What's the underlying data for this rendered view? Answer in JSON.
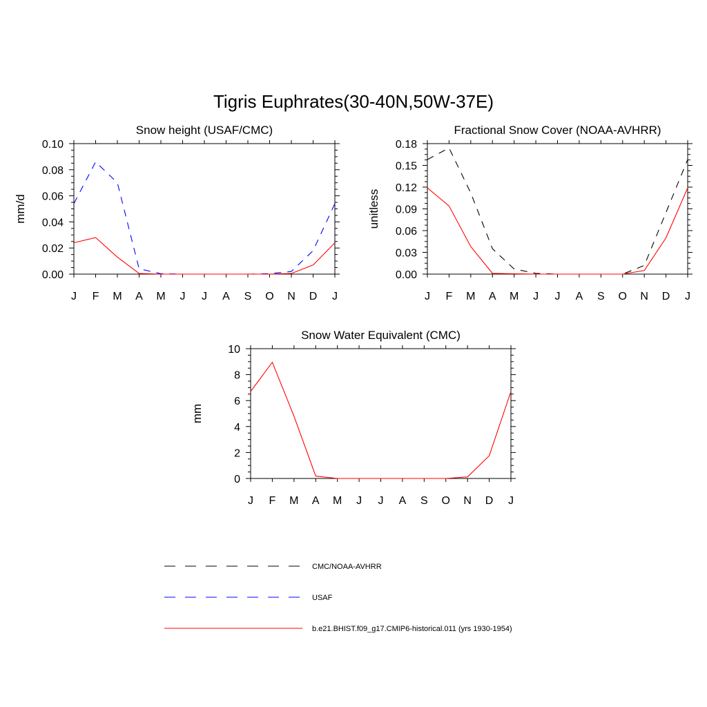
{
  "figure": {
    "title": "Tigris Euphrates(30-40N,50W-37E)"
  },
  "chart_data": [
    {
      "type": "line",
      "title": "Snow height (USAF/CMC)",
      "xlabel": "",
      "ylabel": "mm/d",
      "categories": [
        "J",
        "F",
        "M",
        "A",
        "M",
        "J",
        "J",
        "A",
        "S",
        "O",
        "N",
        "D",
        "J"
      ],
      "ylim": [
        0,
        0.1
      ],
      "yticks": [
        "0.00",
        "0.02",
        "0.04",
        "0.06",
        "0.08",
        "0.10"
      ],
      "series": [
        {
          "name": "CMC/NOAA-AVHRR",
          "color": "#000000",
          "dash": true,
          "values": [
            0,
            0,
            0,
            0,
            0,
            0,
            0,
            0,
            0,
            0,
            0,
            0,
            0
          ]
        },
        {
          "name": "USAF",
          "color": "#0000ff",
          "dash": true,
          "values": [
            0.054,
            0.086,
            0.07,
            0.004,
            0.0003,
            0,
            0,
            0,
            0,
            0.0003,
            0.002,
            0.018,
            0.054
          ]
        },
        {
          "name": "b.e21.BHIST.f09_g17.CMIP6-historical.011 (yrs 1930-1954)",
          "color": "#ff0000",
          "dash": false,
          "values": [
            0.024,
            0.028,
            0.013,
            0.0005,
            0,
            0,
            0,
            0,
            0,
            0,
            0.0005,
            0.007,
            0.024
          ]
        }
      ]
    },
    {
      "type": "line",
      "title": "Fractional Snow Cover (NOAA-AVHRR)",
      "xlabel": "",
      "ylabel": "unitless",
      "categories": [
        "J",
        "F",
        "M",
        "A",
        "M",
        "J",
        "J",
        "A",
        "S",
        "O",
        "N",
        "D",
        "J"
      ],
      "ylim": [
        0,
        0.18
      ],
      "yticks": [
        "0.00",
        "0.03",
        "0.06",
        "0.09",
        "0.12",
        "0.15",
        "0.18"
      ],
      "series": [
        {
          "name": "CMC/NOAA-AVHRR",
          "color": "#000000",
          "dash": true,
          "values": [
            0.158,
            0.174,
            0.112,
            0.035,
            0.007,
            0.001,
            0,
            0,
            0,
            0,
            0.012,
            0.085,
            0.158
          ]
        },
        {
          "name": "b.e21.BHIST.f09_g17.CMIP6-historical.011 (yrs 1930-1954)",
          "color": "#ff0000",
          "dash": false,
          "values": [
            0.119,
            0.094,
            0.038,
            0.001,
            0.0005,
            0,
            0,
            0,
            0,
            0,
            0.005,
            0.05,
            0.119
          ]
        }
      ]
    },
    {
      "type": "line",
      "title": "Snow Water Equivalent (CMC)",
      "xlabel": "",
      "ylabel": "mm",
      "categories": [
        "J",
        "F",
        "M",
        "A",
        "M",
        "J",
        "J",
        "A",
        "S",
        "O",
        "N",
        "D",
        "J"
      ],
      "ylim": [
        0,
        10
      ],
      "yticks": [
        "0",
        "2",
        "4",
        "6",
        "8",
        "10"
      ],
      "series": [
        {
          "name": "CMC/NOAA-AVHRR",
          "color": "#000000",
          "dash": true,
          "values": [
            0,
            0,
            0,
            0,
            0,
            0,
            0,
            0,
            0,
            0,
            0,
            0,
            0
          ]
        },
        {
          "name": "b.e21.BHIST.f09_g17.CMIP6-historical.011 (yrs 1930-1954)",
          "color": "#ff0000",
          "dash": false,
          "values": [
            6.7,
            8.95,
            4.8,
            0.18,
            0,
            0,
            0,
            0,
            0,
            0,
            0.12,
            1.75,
            6.7
          ]
        }
      ]
    }
  ],
  "legend": [
    {
      "label": "CMC/NOAA-AVHRR",
      "color": "#000000",
      "dash": true
    },
    {
      "label": "USAF",
      "color": "#0000ff",
      "dash": true
    },
    {
      "label": "b.e21.BHIST.f09_g17.CMIP6-historical.011 (yrs 1930-1954)",
      "color": "#ff0000",
      "dash": false
    }
  ]
}
